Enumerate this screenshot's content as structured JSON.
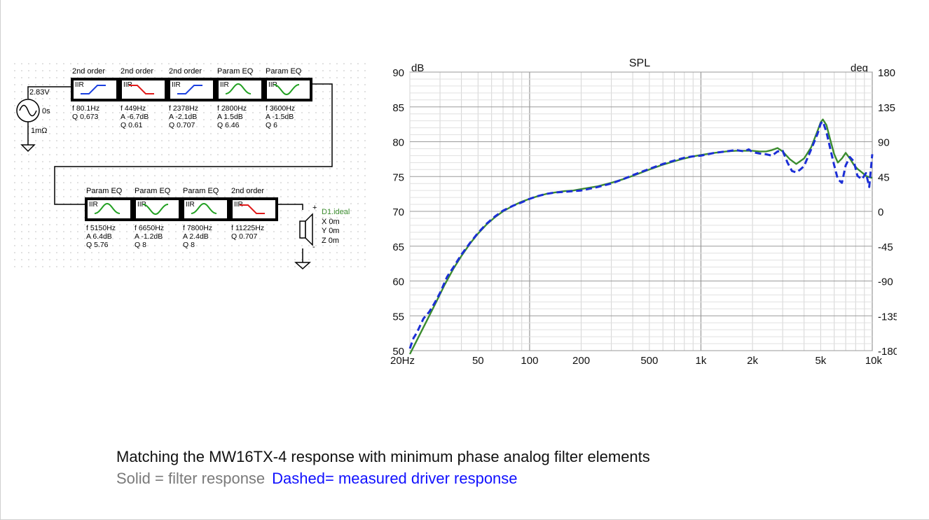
{
  "colors": {
    "filter_line": "#3b8c2e",
    "measured_line": "#1c2fd6",
    "highpass_icon": "#1a3fe0",
    "lowpass_icon": "#e01a1a",
    "peq_icon": "#22a022",
    "text_label": "#3b8c2e",
    "caption_gray": "#7a7a7a",
    "caption_blue": "#1010ff"
  },
  "schematic": {
    "source": {
      "voltage": "2.83V",
      "delay": "0s",
      "resistance": "1mΩ"
    },
    "row1": [
      {
        "title": "2nd order",
        "kind": "IIR",
        "icon": "highpass",
        "params": [
          "f  80.1Hz",
          "Q  0.673",
          ""
        ]
      },
      {
        "title": "2nd order",
        "kind": "IIR",
        "icon": "lowpass",
        "params": [
          "f  449Hz",
          "A  -6.7dB",
          "Q  0.61"
        ]
      },
      {
        "title": "2nd order",
        "kind": "IIR",
        "icon": "highpass",
        "params": [
          "f  2378Hz",
          "A  -2.1dB",
          "Q  0.707"
        ]
      },
      {
        "title": "Param EQ",
        "kind": "IIR",
        "icon": "peak",
        "params": [
          "f  2800Hz",
          "A  1.5dB",
          "Q  6.46"
        ]
      },
      {
        "title": "Param EQ",
        "kind": "IIR",
        "icon": "dip",
        "params": [
          "f  3600Hz",
          "A  -1.5dB",
          "Q  6"
        ]
      }
    ],
    "row2": [
      {
        "title": "Param EQ",
        "kind": "IIR",
        "icon": "peak",
        "params": [
          "f  5150Hz",
          "A  6.4dB",
          "Q  5.76"
        ]
      },
      {
        "title": "Param EQ",
        "kind": "IIR",
        "icon": "dip",
        "params": [
          "f  6650Hz",
          "A  -1.2dB",
          "Q  8"
        ]
      },
      {
        "title": "Param EQ",
        "kind": "IIR",
        "icon": "peak",
        "params": [
          "f  7800Hz",
          "A  2.4dB",
          "Q  8"
        ]
      },
      {
        "title": "2nd order",
        "kind": "IIR",
        "icon": "lowpass",
        "params": [
          "f  11225Hz",
          "Q  0.707",
          ""
        ]
      }
    ],
    "driver": {
      "name": "D1.ideal",
      "x": "X  0m",
      "y": "Y  0m",
      "z": "Z  0m",
      "plus": "+",
      "minus": "-"
    }
  },
  "chart_data": {
    "type": "line",
    "title": "SPL",
    "ylabel": "dB",
    "y2label": "deg",
    "xscale": "log",
    "xlim": [
      20,
      10000
    ],
    "ylim": [
      50,
      90
    ],
    "y2lim": [
      -180,
      180
    ],
    "x_ticks": [
      "20Hz",
      "50",
      "100",
      "200",
      "500",
      "1k",
      "2k",
      "5k",
      "10k"
    ],
    "x_tick_values": [
      20,
      50,
      100,
      200,
      500,
      1000,
      2000,
      5000,
      10000
    ],
    "y_ticks": [
      50,
      55,
      60,
      65,
      70,
      75,
      80,
      85,
      90
    ],
    "y2_ticks": [
      -180,
      -135,
      -90,
      -45,
      0,
      45,
      90,
      135,
      180
    ],
    "grid": true,
    "series": [
      {
        "style": "solid",
        "x": [
          20,
          22,
          25,
          28,
          32,
          36,
          40,
          45,
          50,
          56,
          63,
          70,
          80,
          90,
          100,
          112,
          125,
          140,
          160,
          180,
          200,
          250,
          300,
          350,
          400,
          500,
          600,
          700,
          800,
          900,
          1000,
          1200,
          1400,
          1600,
          1800,
          2000,
          2200,
          2400,
          2600,
          2800,
          3000,
          3300,
          3600,
          4000,
          4400,
          4800,
          5000,
          5150,
          5400,
          5700,
          6000,
          6300,
          6650,
          7000,
          7400,
          7800,
          8200,
          8700,
          9200,
          9600,
          10000
        ],
        "y": [
          49.5,
          51.5,
          54.2,
          56.6,
          59.5,
          61.8,
          63.6,
          65.4,
          66.8,
          68.1,
          69.2,
          70.0,
          70.8,
          71.4,
          71.8,
          72.2,
          72.5,
          72.7,
          72.9,
          73.0,
          73.2,
          73.6,
          74.1,
          74.6,
          75.1,
          76.0,
          76.7,
          77.2,
          77.6,
          77.9,
          78.1,
          78.4,
          78.6,
          78.7,
          78.7,
          78.7,
          78.6,
          78.6,
          78.8,
          79.1,
          78.6,
          77.5,
          76.8,
          77.6,
          79.2,
          81.6,
          82.8,
          83.2,
          82.4,
          80.2,
          78.2,
          77.0,
          77.6,
          78.4,
          77.6,
          76.7,
          76.1,
          75.6,
          75.1,
          74.9,
          74.8
        ]
      },
      {
        "style": "dashed",
        "x": [
          20,
          21,
          22,
          24,
          26,
          28,
          30,
          33,
          36,
          40,
          45,
          50,
          56,
          63,
          70,
          80,
          90,
          100,
          112,
          125,
          140,
          160,
          180,
          200,
          250,
          300,
          350,
          400,
          500,
          600,
          700,
          800,
          900,
          1000,
          1200,
          1400,
          1600,
          1800,
          1900,
          2000,
          2200,
          2400,
          2600,
          2800,
          3000,
          3200,
          3400,
          3600,
          3800,
          4000,
          4400,
          4800,
          5000,
          5150,
          5400,
          5700,
          6000,
          6300,
          6650,
          7000,
          7400,
          7800,
          8200,
          8700,
          9200,
          9600,
          10000
        ],
        "y": [
          50.3,
          51.8,
          52.6,
          54.6,
          55.6,
          56.9,
          58.3,
          60.6,
          62.0,
          63.8,
          65.5,
          66.9,
          68.2,
          69.3,
          70.1,
          70.8,
          71.3,
          71.8,
          72.2,
          72.5,
          72.7,
          72.8,
          72.9,
          73.0,
          73.5,
          74.0,
          74.6,
          75.2,
          76.1,
          76.8,
          77.3,
          77.7,
          77.9,
          78.0,
          78.4,
          78.6,
          78.8,
          78.6,
          78.9,
          78.5,
          78.3,
          78.2,
          78.0,
          78.6,
          78.7,
          77.0,
          75.8,
          75.6,
          76.0,
          76.5,
          78.9,
          81.2,
          82.6,
          82.9,
          81.4,
          78.9,
          76.6,
          74.6,
          74.1,
          76.6,
          77.8,
          77.2,
          75.1,
          74.6,
          75.5,
          73.5,
          78.2
        ]
      }
    ]
  },
  "captions": {
    "line1": "Matching the MW16TX-4 response with minimum phase analog filter elements",
    "line2a": "Solid = filter response",
    "line2b": "Dashed= measured driver response"
  }
}
